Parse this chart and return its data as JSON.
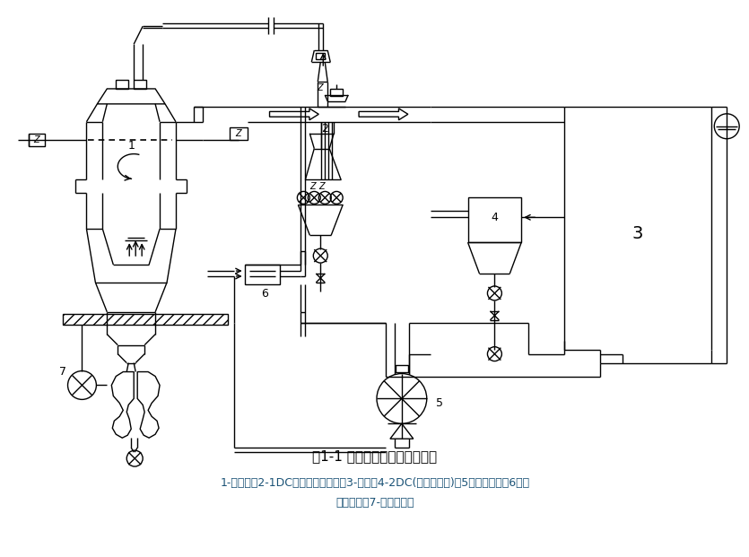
{
  "title": "图1-1 干熄焦工艺流程图示意图",
  "caption_line1": "1-干熄炉；2-1DC（一次除尘器）；3-锅炉；4-2DC(二次除尘器)；5一循环风机；6一给",
  "caption_line2": "水预热器；7-旋转密封阀",
  "title_color": "#000000",
  "caption_color": "#1a5276",
  "bg_color": "#ffffff",
  "line_color": "#000000"
}
